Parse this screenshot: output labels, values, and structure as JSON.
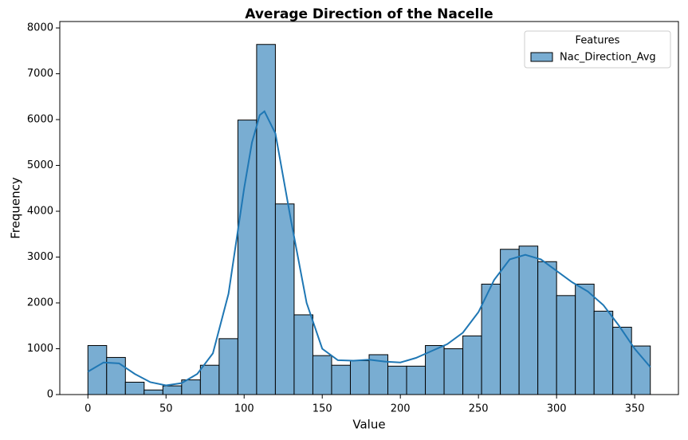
{
  "chart_data": {
    "type": "histogram",
    "title": "Average Direction of the Nacelle",
    "xlabel": "Value",
    "ylabel": "Frequency",
    "name": "Nac_Direction_Avg",
    "color": "#79add2",
    "edgecolor": "#000000",
    "bins": [
      0,
      12,
      24,
      36,
      48,
      60,
      72,
      84,
      96,
      108,
      120,
      132,
      144,
      156,
      168,
      180,
      192,
      204,
      216,
      228,
      240,
      252,
      264,
      276,
      288,
      300,
      312,
      324,
      336,
      348,
      360
    ],
    "counts": [
      1070,
      810,
      270,
      100,
      190,
      320,
      640,
      1220,
      5990,
      7640,
      4160,
      1740,
      850,
      640,
      740,
      870,
      620,
      620,
      1070,
      1000,
      1280,
      2410,
      3170,
      3240,
      2900,
      2160,
      2410,
      1820,
      1470,
      1060
    ],
    "kde": {
      "color": "#1f77b4",
      "x": [
        0,
        10,
        20,
        30,
        40,
        50,
        60,
        70,
        80,
        90,
        100,
        105,
        110,
        113,
        120,
        130,
        140,
        150,
        160,
        170,
        180,
        190,
        200,
        210,
        220,
        230,
        240,
        250,
        260,
        270,
        280,
        290,
        300,
        310,
        320,
        330,
        340,
        350,
        360
      ],
      "values": [
        500,
        700,
        680,
        450,
        270,
        200,
        250,
        450,
        900,
        2200,
        4500,
        5500,
        6100,
        6180,
        5700,
        3800,
        2000,
        1000,
        750,
        740,
        760,
        720,
        700,
        800,
        950,
        1100,
        1350,
        1800,
        2500,
        2950,
        3050,
        2950,
        2700,
        2450,
        2250,
        1950,
        1500,
        1000,
        600
      ]
    },
    "legend_title": "Features",
    "legend_loc": "upper right",
    "xlim": [
      -18,
      378
    ],
    "ylim": [
      0,
      8140
    ],
    "xticks": [
      0,
      50,
      100,
      150,
      200,
      250,
      300,
      350
    ],
    "yticks": [
      0,
      1000,
      2000,
      3000,
      4000,
      5000,
      6000,
      7000,
      8000
    ]
  }
}
